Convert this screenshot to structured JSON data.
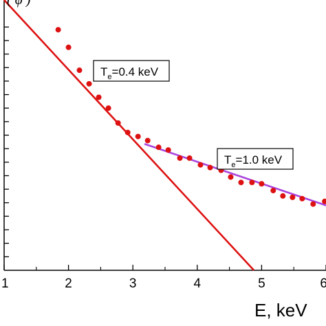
{
  "chart_data": {
    "type": "scatter",
    "title": "",
    "xlabel": "E, keV",
    "ylabel_fragment": "( φ )",
    "xlim": [
      1,
      6
    ],
    "ylim": [
      0,
      20
    ],
    "log_y": true,
    "x_ticks": [
      1,
      2,
      3,
      4,
      5,
      6
    ],
    "x_tick_labels": [
      "1",
      "2",
      "3",
      "4",
      "5",
      "6"
    ],
    "y_ticks": [
      1,
      2,
      3,
      4,
      5,
      6,
      7,
      8,
      9,
      10,
      11,
      12,
      13,
      14,
      15,
      16,
      17,
      18
    ],
    "grid": false,
    "legend": "none",
    "series": [
      {
        "kind": "points",
        "color": "#dd1111",
        "x": [
          1.84,
          2.0,
          2.17,
          2.32,
          2.47,
          2.62,
          2.77,
          2.92,
          3.08,
          3.23,
          3.4,
          3.55,
          3.73,
          3.88,
          4.05,
          4.2,
          4.37,
          4.52,
          4.68,
          4.85,
          5.0,
          5.18,
          5.33,
          5.48,
          5.63,
          5.8,
          5.98
        ],
        "y": [
          17.8,
          16.5,
          14.8,
          13.8,
          12.8,
          12.0,
          10.9,
          10.2,
          9.9,
          9.6,
          9.1,
          8.9,
          8.3,
          8.3,
          7.8,
          7.6,
          7.4,
          6.9,
          6.5,
          6.5,
          6.4,
          5.9,
          5.5,
          5.4,
          5.3,
          4.9,
          5.1
        ]
      },
      {
        "kind": "fit-line",
        "color": "#dd1111",
        "x": [
          1.0,
          4.88
        ],
        "y": [
          20.0,
          0.0
        ]
      },
      {
        "kind": "fit-line",
        "color": "#aa44dd",
        "x": [
          3.18,
          6.0
        ],
        "y": [
          9.35,
          4.8
        ]
      }
    ],
    "annotations": [
      {
        "id": "te-low",
        "text_main": "T",
        "text_sub": "e",
        "text_rest": "=0.4 keV"
      },
      {
        "id": "te-high",
        "text_main": "T",
        "text_sub": "e",
        "text_rest": "=1.0 keV"
      }
    ]
  }
}
